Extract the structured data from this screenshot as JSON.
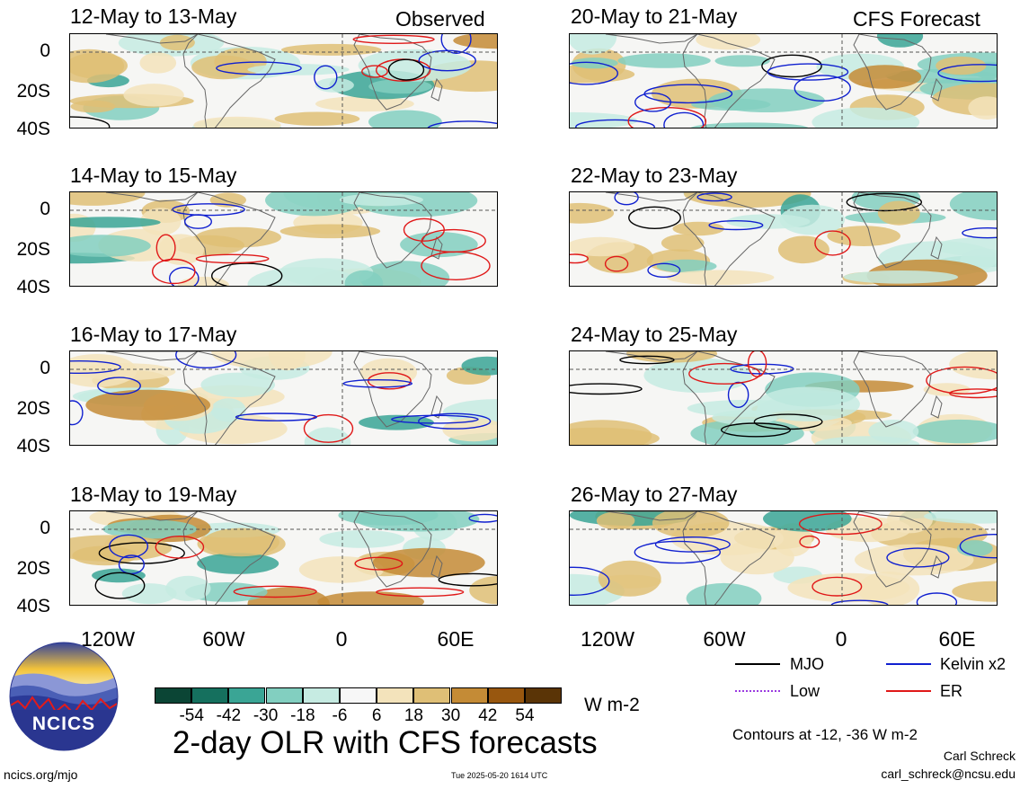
{
  "panels": [
    {
      "title": "12-May to 13-May",
      "tag": "Observed"
    },
    {
      "title": "20-May to 21-May",
      "tag": "CFS Forecast"
    },
    {
      "title": "14-May to 15-May",
      "tag": ""
    },
    {
      "title": "22-May to 23-May",
      "tag": ""
    },
    {
      "title": "16-May to 17-May",
      "tag": ""
    },
    {
      "title": "24-May to 25-May",
      "tag": ""
    },
    {
      "title": "18-May to 19-May",
      "tag": ""
    },
    {
      "title": "26-May to 27-May",
      "tag": ""
    }
  ],
  "axes": {
    "lat_labels": [
      "0",
      "20S",
      "40S"
    ],
    "lon_labels": [
      "120W",
      "60W",
      "0",
      "60E"
    ]
  },
  "colorbar": {
    "ticks": [
      "-54",
      "-42",
      "-30",
      "-18",
      "-6",
      "6",
      "18",
      "30",
      "42",
      "54"
    ],
    "colors": [
      "#0b4535",
      "#15705e",
      "#3aa595",
      "#82cfc0",
      "#c6ebe2",
      "#f7f7f7",
      "#f3e3bb",
      "#dfbf76",
      "#c48b36",
      "#98570f",
      "#5a3406"
    ],
    "units": "W m-2"
  },
  "legend": {
    "mjo": "MJO",
    "kelvin": "Kelvin x2",
    "low": "Low",
    "er": "ER",
    "colors": {
      "mjo": "#000000",
      "kelvin": "#1020d0",
      "low": "#9a3be0",
      "er": "#e01818"
    }
  },
  "title": "2-day OLR with CFS forecasts",
  "contours_note": "Contours at -12, -36 W m-2",
  "author": "Carl Schreck",
  "email": "carl_schreck@ncsu.edu",
  "website": "ncics.org/mjo",
  "timestamp": "Tue 2025-05-20 1614 UTC",
  "logo_text": "NCICS"
}
